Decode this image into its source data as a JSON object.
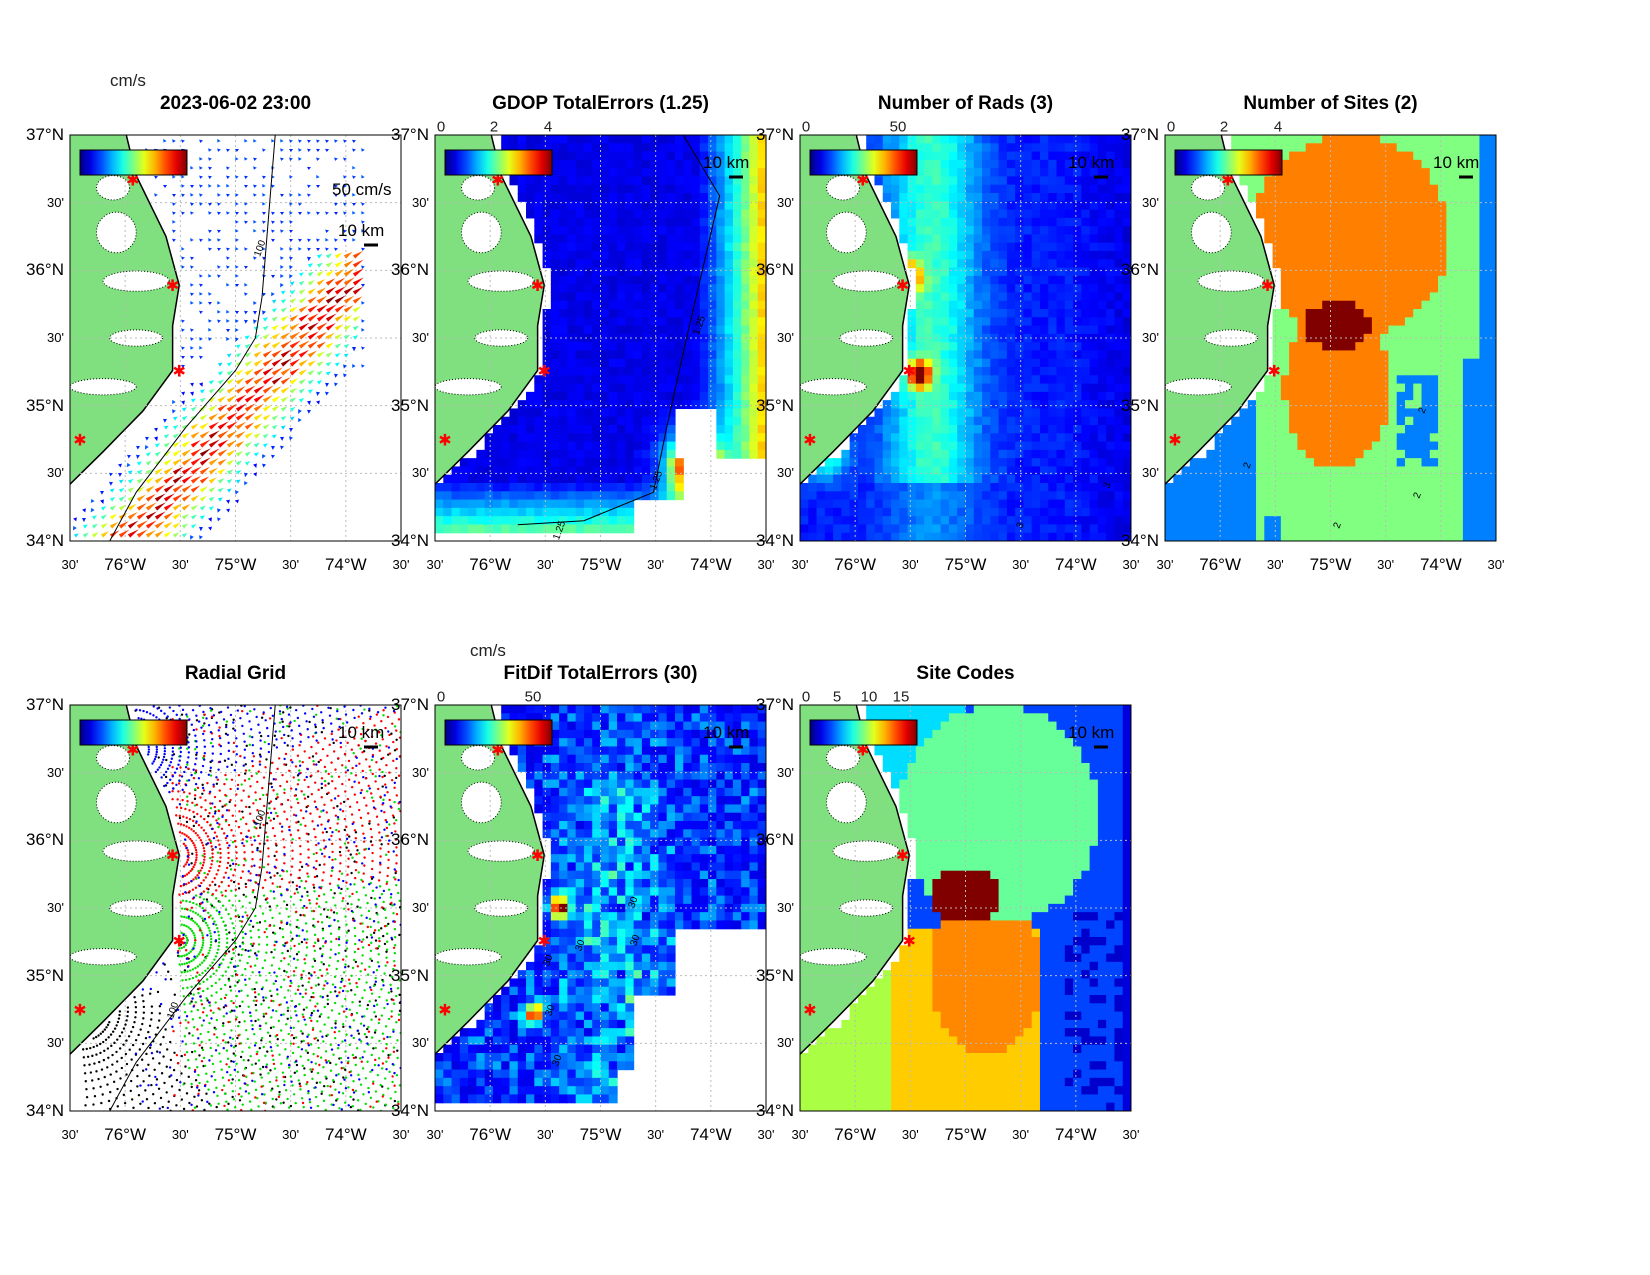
{
  "axes": {
    "lat_labels": [
      "37°N",
      "30'",
      "36°N",
      "30'",
      "35°N",
      "30'",
      "34°N"
    ],
    "lon_labels": [
      "30'",
      "76°W",
      "30'",
      "75°W",
      "30'",
      "74°W",
      "30'"
    ]
  },
  "colors": {
    "land": "#80e080",
    "coast": "#000000",
    "site_marker": "#ff0000"
  },
  "panels": [
    {
      "key": "vectors",
      "title": "2023-06-02 23:00",
      "unit": "cm/s",
      "colorbar_ticks": [],
      "scale_label": "10 km",
      "vector_scale_label": "50 cm/s",
      "contour_labels": [
        "100"
      ]
    },
    {
      "key": "gdop",
      "title": "GDOP TotalErrors (1.25)",
      "colorbar_ticks": [
        "0",
        "2",
        "4"
      ],
      "scale_label": "10 km",
      "contour_labels": [
        "1.25",
        "1.25",
        "1.25"
      ]
    },
    {
      "key": "rads",
      "title": "Number of Rads (3)",
      "colorbar_ticks": [
        "0",
        "50"
      ],
      "scale_label": "10 km",
      "contour_labels": [
        "3",
        "3"
      ]
    },
    {
      "key": "sites",
      "title": "Number of Sites (2)",
      "colorbar_ticks": [
        "0",
        "2",
        "4"
      ],
      "scale_label": "10 km",
      "contour_labels": [
        "2",
        "2",
        "2",
        "2"
      ]
    },
    {
      "key": "radgrid",
      "title": "Radial Grid",
      "colorbar_ticks": [],
      "scale_label": "10 km",
      "contour_labels": [
        "100",
        "100"
      ]
    },
    {
      "key": "fitdif",
      "title": "FitDif TotalErrors (30)",
      "unit": "cm/s",
      "colorbar_ticks": [
        "0",
        "50"
      ],
      "scale_label": "10 km",
      "contour_labels": [
        "30",
        "30",
        "30",
        "30",
        "30",
        "30"
      ]
    },
    {
      "key": "codes",
      "title": "Site Codes",
      "colorbar_ticks": [
        "0",
        "5",
        "10",
        "15"
      ],
      "scale_label": "10 km",
      "contour_labels": []
    }
  ],
  "chart_data": {
    "type": "heatmap",
    "description_axes": {
      "xlim_lon": [
        -76.5,
        -73.5
      ],
      "ylim_lat": [
        34,
        37
      ]
    },
    "colormap": "jet",
    "panels": [
      {
        "title": "2023-06-02 23:00",
        "kind": "vector field",
        "units": "cm/s",
        "colorbar_range": null
      },
      {
        "title": "GDOP TotalErrors (1.25)",
        "colorbar_range": [
          0,
          4
        ],
        "contour": 1.25
      },
      {
        "title": "Number of Rads (3)",
        "colorbar_range": [
          0,
          70
        ],
        "contour": 3
      },
      {
        "title": "Number of Sites (2)",
        "colorbar_range": [
          0,
          4
        ],
        "contour": 2
      },
      {
        "title": "Radial Grid",
        "kind": "points"
      },
      {
        "title": "FitDif TotalErrors (30)",
        "units": "cm/s",
        "colorbar_range": [
          0,
          70
        ],
        "contour": 30
      },
      {
        "title": "Site Codes",
        "colorbar_range": [
          0,
          17
        ]
      }
    ]
  }
}
